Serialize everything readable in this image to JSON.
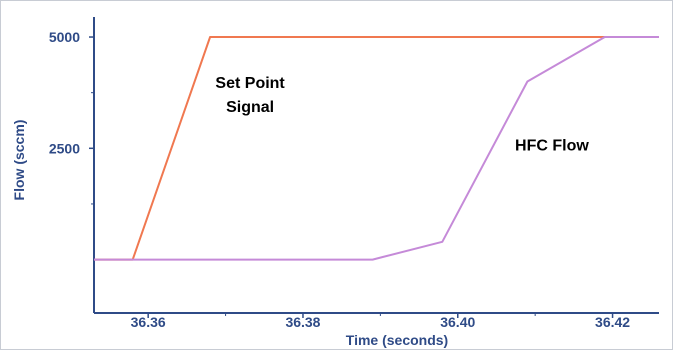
{
  "chart_data": {
    "type": "line",
    "title": "",
    "xlabel": "Time (seconds)",
    "ylabel": "Flow (sccm)",
    "xlim": [
      36.353,
      36.426
    ],
    "ylim": [
      -1200,
      5450
    ],
    "xticks": [
      36.36,
      36.38,
      36.4,
      36.42
    ],
    "xtick_labels": [
      "36.36",
      "36.38",
      "36.40",
      "36.42"
    ],
    "yticks": [
      5000,
      2500
    ],
    "ytick_labels": [
      "5000",
      "2500"
    ],
    "grid": false,
    "series": [
      {
        "name": "Set Point Signal",
        "color": "#f07850",
        "x": [
          36.353,
          36.358,
          36.368,
          36.426
        ],
        "y": [
          0,
          0,
          5000,
          5000
        ]
      },
      {
        "name": "HFC Flow",
        "color": "#c58ad8",
        "x": [
          36.353,
          36.389,
          36.398,
          36.409,
          36.419,
          36.426
        ],
        "y": [
          0,
          0,
          400,
          4000,
          5000,
          5000
        ]
      }
    ],
    "annotations": [
      {
        "lines": [
          "Set Point",
          "Signal"
        ],
        "x": 36.368,
        "y": 3850
      },
      {
        "lines": [
          "HFC Flow"
        ],
        "x": 36.407,
        "y": 2450
      }
    ]
  },
  "colors": {
    "axis": "#2f4b87",
    "label": "#2f4b87",
    "annotation": "#000000"
  }
}
